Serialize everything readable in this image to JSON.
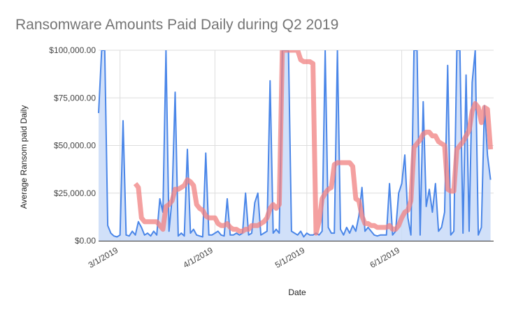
{
  "chart_data": {
    "type": "line",
    "title": "Ransomware Amounts Paid Daily during Q2 2019",
    "xlabel": "Date",
    "ylabel": "Average Ransom paid Daily",
    "ylim": [
      0,
      100000
    ],
    "yticks": [
      0,
      25000,
      50000,
      75000,
      100000
    ],
    "ytick_labels": [
      "$0.00",
      "$25,000.00",
      "$50,000.00",
      "$75,000.00",
      "$100,000.00"
    ],
    "xticks": [
      "2019-03-01",
      "2019-04-01",
      "2019-05-01",
      "2019-06-01"
    ],
    "xtick_labels": [
      "3/1/2019",
      "4/1/2019",
      "5/1/2019",
      "6/1/2019"
    ],
    "xlim": [
      "2019-02-22",
      "2019-07-01"
    ],
    "grid": true,
    "legend": "none",
    "colors": {
      "daily_line": "#4a86e8",
      "daily_fill": "#c9daf8",
      "trend_line": "#f08080",
      "grid": "#dddddd",
      "axis": "#333333"
    },
    "series": [
      {
        "style": "area-line",
        "points": [
          [
            "2019-02-22",
            67000
          ],
          [
            "2019-02-23",
            100000
          ],
          [
            "2019-02-24",
            100000
          ],
          [
            "2019-02-25",
            8000
          ],
          [
            "2019-02-26",
            4000
          ],
          [
            "2019-02-27",
            2500
          ],
          [
            "2019-02-28",
            2000
          ],
          [
            "2019-03-01",
            3000
          ],
          [
            "2019-03-02",
            63000
          ],
          [
            "2019-03-03",
            3000
          ],
          [
            "2019-03-04",
            2500
          ],
          [
            "2019-03-05",
            5000
          ],
          [
            "2019-03-06",
            3000
          ],
          [
            "2019-03-07",
            10000
          ],
          [
            "2019-03-08",
            7000
          ],
          [
            "2019-03-09",
            3000
          ],
          [
            "2019-03-10",
            4000
          ],
          [
            "2019-03-11",
            2500
          ],
          [
            "2019-03-12",
            5000
          ],
          [
            "2019-03-13",
            3000
          ],
          [
            "2019-03-14",
            22000
          ],
          [
            "2019-03-15",
            15000
          ],
          [
            "2019-03-16",
            100000
          ],
          [
            "2019-03-17",
            5000
          ],
          [
            "2019-03-18",
            22000
          ],
          [
            "2019-03-19",
            78000
          ],
          [
            "2019-03-20",
            2500
          ],
          [
            "2019-03-21",
            4000
          ],
          [
            "2019-03-22",
            2500
          ],
          [
            "2019-03-23",
            48000
          ],
          [
            "2019-03-24",
            4000
          ],
          [
            "2019-03-25",
            6000
          ],
          [
            "2019-03-26",
            3000
          ],
          [
            "2019-03-27",
            2500
          ],
          [
            "2019-03-28",
            2000
          ],
          [
            "2019-03-29",
            46000
          ],
          [
            "2019-03-30",
            3000
          ],
          [
            "2019-03-31",
            3000
          ],
          [
            "2019-04-01",
            4000
          ],
          [
            "2019-04-02",
            5000
          ],
          [
            "2019-04-03",
            3000
          ],
          [
            "2019-04-04",
            2500
          ],
          [
            "2019-04-05",
            22000
          ],
          [
            "2019-04-06",
            3000
          ],
          [
            "2019-04-07",
            3000
          ],
          [
            "2019-04-08",
            4000
          ],
          [
            "2019-04-09",
            3000
          ],
          [
            "2019-04-10",
            4000
          ],
          [
            "2019-04-11",
            25000
          ],
          [
            "2019-04-12",
            3000
          ],
          [
            "2019-04-13",
            4000
          ],
          [
            "2019-04-14",
            20000
          ],
          [
            "2019-04-15",
            25000
          ],
          [
            "2019-04-16",
            3000
          ],
          [
            "2019-04-17",
            4000
          ],
          [
            "2019-04-18",
            5000
          ],
          [
            "2019-04-19",
            84000
          ],
          [
            "2019-04-20",
            4000
          ],
          [
            "2019-04-21",
            6000
          ],
          [
            "2019-04-22",
            4000
          ],
          [
            "2019-04-23",
            100000
          ],
          [
            "2019-04-24",
            100000
          ],
          [
            "2019-04-25",
            100000
          ],
          [
            "2019-04-26",
            5000
          ],
          [
            "2019-04-27",
            4000
          ],
          [
            "2019-04-28",
            3000
          ],
          [
            "2019-04-29",
            5000
          ],
          [
            "2019-04-30",
            2000
          ],
          [
            "2019-05-01",
            4000
          ],
          [
            "2019-05-02",
            3000
          ],
          [
            "2019-05-03",
            3000
          ],
          [
            "2019-05-04",
            4000
          ],
          [
            "2019-05-05",
            3000
          ],
          [
            "2019-05-06",
            5000
          ],
          [
            "2019-05-07",
            100000
          ],
          [
            "2019-05-08",
            7000
          ],
          [
            "2019-05-09",
            4000
          ],
          [
            "2019-05-10",
            4000
          ],
          [
            "2019-05-11",
            100000
          ],
          [
            "2019-05-12",
            6000
          ],
          [
            "2019-05-13",
            3000
          ],
          [
            "2019-05-14",
            7000
          ],
          [
            "2019-05-15",
            4000
          ],
          [
            "2019-05-16",
            8000
          ],
          [
            "2019-05-17",
            5000
          ],
          [
            "2019-05-18",
            13000
          ],
          [
            "2019-05-19",
            28000
          ],
          [
            "2019-05-20",
            5000
          ],
          [
            "2019-05-21",
            7000
          ],
          [
            "2019-05-22",
            5000
          ],
          [
            "2019-05-23",
            3000
          ],
          [
            "2019-05-24",
            2500
          ],
          [
            "2019-05-25",
            3000
          ],
          [
            "2019-05-26",
            3000
          ],
          [
            "2019-05-27",
            3000
          ],
          [
            "2019-05-28",
            30000
          ],
          [
            "2019-05-29",
            3000
          ],
          [
            "2019-05-30",
            5000
          ],
          [
            "2019-05-31",
            25000
          ],
          [
            "2019-06-01",
            30000
          ],
          [
            "2019-06-02",
            45000
          ],
          [
            "2019-06-03",
            12000
          ],
          [
            "2019-06-04",
            3000
          ],
          [
            "2019-06-05",
            100000
          ],
          [
            "2019-06-06",
            100000
          ],
          [
            "2019-06-07",
            3000
          ],
          [
            "2019-06-08",
            73000
          ],
          [
            "2019-06-09",
            18000
          ],
          [
            "2019-06-10",
            27000
          ],
          [
            "2019-06-11",
            15000
          ],
          [
            "2019-06-12",
            30000
          ],
          [
            "2019-06-13",
            5000
          ],
          [
            "2019-06-14",
            7000
          ],
          [
            "2019-06-15",
            15000
          ],
          [
            "2019-06-16",
            92000
          ],
          [
            "2019-06-17",
            3000
          ],
          [
            "2019-06-18",
            5000
          ],
          [
            "2019-06-19",
            100000
          ],
          [
            "2019-06-20",
            100000
          ],
          [
            "2019-06-21",
            4000
          ],
          [
            "2019-06-22",
            87000
          ],
          [
            "2019-06-23",
            5000
          ],
          [
            "2019-06-24",
            83000
          ],
          [
            "2019-06-25",
            100000
          ],
          [
            "2019-06-26",
            3000
          ],
          [
            "2019-06-27",
            7000
          ],
          [
            "2019-06-28",
            71000
          ],
          [
            "2019-06-29",
            45000
          ],
          [
            "2019-06-30",
            32000
          ]
        ]
      },
      {
        "style": "trend-line",
        "points": [
          [
            "2019-03-06",
            30000
          ],
          [
            "2019-03-07",
            28000
          ],
          [
            "2019-03-08",
            12000
          ],
          [
            "2019-03-09",
            10000
          ],
          [
            "2019-03-10",
            10000
          ],
          [
            "2019-03-11",
            10000
          ],
          [
            "2019-03-12",
            10000
          ],
          [
            "2019-03-13",
            10000
          ],
          [
            "2019-03-14",
            8000
          ],
          [
            "2019-03-15",
            6000
          ],
          [
            "2019-03-16",
            18000
          ],
          [
            "2019-03-17",
            19000
          ],
          [
            "2019-03-18",
            21000
          ],
          [
            "2019-03-19",
            27000
          ],
          [
            "2019-03-20",
            27000
          ],
          [
            "2019-03-21",
            28000
          ],
          [
            "2019-03-22",
            29000
          ],
          [
            "2019-03-23",
            32000
          ],
          [
            "2019-03-24",
            31000
          ],
          [
            "2019-03-25",
            29000
          ],
          [
            "2019-03-26",
            19000
          ],
          [
            "2019-03-27",
            17000
          ],
          [
            "2019-03-28",
            16000
          ],
          [
            "2019-03-29",
            13000
          ],
          [
            "2019-03-30",
            12000
          ],
          [
            "2019-03-31",
            12000
          ],
          [
            "2019-04-01",
            12000
          ],
          [
            "2019-04-02",
            9000
          ],
          [
            "2019-04-03",
            8000
          ],
          [
            "2019-04-04",
            8000
          ],
          [
            "2019-04-05",
            9000
          ],
          [
            "2019-04-06",
            7000
          ],
          [
            "2019-04-07",
            6000
          ],
          [
            "2019-04-08",
            6000
          ],
          [
            "2019-04-09",
            5000
          ],
          [
            "2019-04-10",
            5000
          ],
          [
            "2019-04-11",
            6000
          ],
          [
            "2019-04-12",
            6000
          ],
          [
            "2019-04-13",
            8000
          ],
          [
            "2019-04-14",
            8000
          ],
          [
            "2019-04-15",
            8000
          ],
          [
            "2019-04-16",
            9000
          ],
          [
            "2019-04-17",
            10000
          ],
          [
            "2019-04-18",
            12000
          ],
          [
            "2019-04-19",
            17000
          ],
          [
            "2019-04-20",
            19000
          ],
          [
            "2019-04-21",
            17000
          ],
          [
            "2019-04-22",
            19000
          ],
          [
            "2019-04-23",
            100000
          ],
          [
            "2019-04-24",
            100000
          ],
          [
            "2019-04-26",
            100000
          ],
          [
            "2019-04-27",
            100000
          ],
          [
            "2019-04-28",
            100000
          ],
          [
            "2019-04-29",
            95000
          ],
          [
            "2019-04-30",
            94000
          ],
          [
            "2019-05-01",
            94000
          ],
          [
            "2019-05-02",
            94000
          ],
          [
            "2019-05-03",
            93000
          ],
          [
            "2019-05-04",
            4000
          ],
          [
            "2019-05-05",
            10000
          ],
          [
            "2019-05-06",
            22000
          ],
          [
            "2019-05-07",
            25000
          ],
          [
            "2019-05-08",
            27000
          ],
          [
            "2019-05-09",
            28000
          ],
          [
            "2019-05-10",
            40000
          ],
          [
            "2019-05-11",
            41000
          ],
          [
            "2019-05-12",
            41000
          ],
          [
            "2019-05-13",
            41000
          ],
          [
            "2019-05-14",
            41000
          ],
          [
            "2019-05-15",
            41000
          ],
          [
            "2019-05-16",
            39000
          ],
          [
            "2019-05-17",
            22000
          ],
          [
            "2019-05-18",
            21000
          ],
          [
            "2019-05-19",
            13000
          ],
          [
            "2019-05-20",
            9000
          ],
          [
            "2019-05-21",
            9000
          ],
          [
            "2019-05-22",
            8000
          ],
          [
            "2019-05-23",
            8000
          ],
          [
            "2019-05-24",
            7000
          ],
          [
            "2019-05-25",
            7000
          ],
          [
            "2019-05-26",
            7000
          ],
          [
            "2019-05-27",
            7000
          ],
          [
            "2019-05-28",
            8000
          ],
          [
            "2019-05-29",
            6000
          ],
          [
            "2019-05-30",
            6000
          ],
          [
            "2019-05-31",
            8000
          ],
          [
            "2019-06-01",
            12000
          ],
          [
            "2019-06-02",
            15000
          ],
          [
            "2019-06-03",
            16000
          ],
          [
            "2019-06-04",
            21000
          ],
          [
            "2019-06-05",
            49000
          ],
          [
            "2019-06-06",
            51000
          ],
          [
            "2019-06-07",
            53000
          ],
          [
            "2019-06-08",
            56000
          ],
          [
            "2019-06-09",
            57000
          ],
          [
            "2019-06-10",
            57000
          ],
          [
            "2019-06-11",
            55000
          ],
          [
            "2019-06-12",
            55000
          ],
          [
            "2019-06-13",
            52000
          ],
          [
            "2019-06-14",
            51000
          ],
          [
            "2019-06-15",
            50000
          ],
          [
            "2019-06-16",
            27000
          ],
          [
            "2019-06-17",
            26000
          ],
          [
            "2019-06-18",
            26000
          ],
          [
            "2019-06-19",
            48000
          ],
          [
            "2019-06-20",
            50000
          ],
          [
            "2019-06-21",
            52000
          ],
          [
            "2019-06-22",
            55000
          ],
          [
            "2019-06-23",
            58000
          ],
          [
            "2019-06-24",
            68000
          ],
          [
            "2019-06-25",
            72000
          ],
          [
            "2019-06-26",
            70000
          ],
          [
            "2019-06-27",
            62000
          ],
          [
            "2019-06-28",
            70000
          ],
          [
            "2019-06-29",
            69000
          ],
          [
            "2019-06-30",
            48000
          ]
        ]
      }
    ]
  }
}
